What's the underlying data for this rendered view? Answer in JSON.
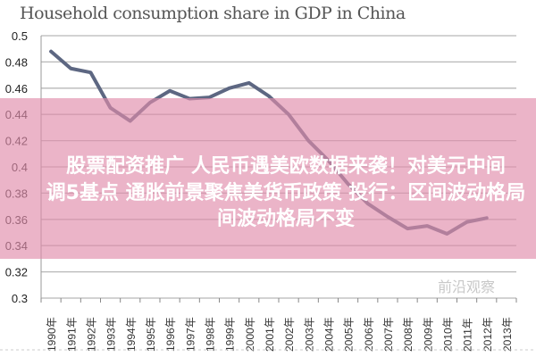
{
  "chart_data": {
    "type": "line",
    "title": "Household consumption share in GDP in China",
    "xlabel": "",
    "ylabel": "",
    "ylim": [
      0.3,
      0.5
    ],
    "yticks": [
      "0.3",
      "0.32",
      "0.34",
      "0.36",
      "0.38",
      "0.4",
      "0.42",
      "0.44",
      "0.46",
      "0.48",
      "0.5"
    ],
    "categories": [
      "1990年",
      "1991年",
      "1992年",
      "1993年",
      "1994年",
      "1995年",
      "1996年",
      "1997年",
      "1998年",
      "1999年",
      "2000年",
      "2001年",
      "2002年",
      "2003年",
      "2004年",
      "2005年",
      "2006年",
      "2007年",
      "2008年",
      "2009年",
      "2010年",
      "2011年",
      "2012年",
      "2013年"
    ],
    "series": [
      {
        "name": "Household consumption share",
        "color": "#5d6782",
        "values": [
          0.488,
          0.475,
          0.472,
          0.445,
          0.435,
          0.449,
          0.458,
          0.452,
          0.453,
          0.46,
          0.464,
          0.454,
          0.44,
          0.42,
          0.405,
          0.387,
          0.372,
          0.362,
          0.353,
          0.355,
          0.349,
          0.358,
          0.361,
          null
        ]
      }
    ],
    "grid": true
  },
  "overlay": {
    "line1": "股票配资推广 人民币遇美欧数据来袭！对美元中间",
    "line2": "调5基点 通胀前景聚焦美货币政策 投行：区间波动格局",
    "line3": "间波动格局不变"
  },
  "watermark": "前沿观察"
}
